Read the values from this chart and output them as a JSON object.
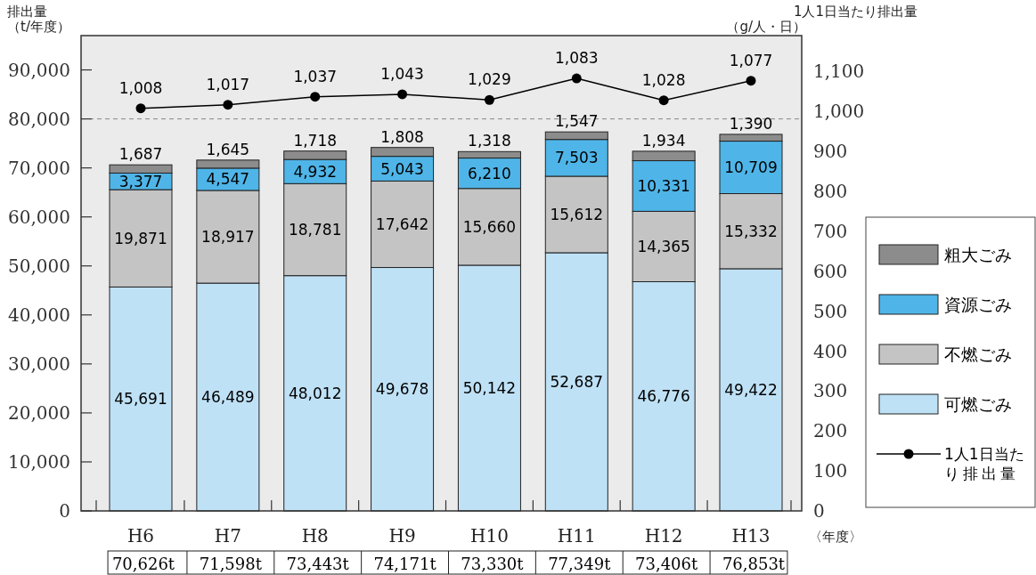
{
  "chart_data": {
    "type": "bar",
    "stacked": true,
    "ylabel": "排出量（t/年度）",
    "y2label": "1人1日当たり排出量（g/人・日）",
    "xlabel": "〈年度〉",
    "categories": [
      "H6",
      "H7",
      "H8",
      "H9",
      "H10",
      "H11",
      "H12",
      "H13"
    ],
    "series": [
      {
        "name": "可燃ごみ",
        "color": "#bfe1f6",
        "values": [
          45691,
          46489,
          48012,
          49678,
          50142,
          52687,
          46776,
          49422
        ],
        "value_labels": [
          "45,691",
          "46,489",
          "48,012",
          "49,678",
          "50,142",
          "52,687",
          "46,776",
          "49,422"
        ]
      },
      {
        "name": "不燃ごみ",
        "color": "#c4c4c4",
        "values": [
          19871,
          18917,
          18781,
          17642,
          15660,
          15612,
          14365,
          15332
        ],
        "value_labels": [
          "19,871",
          "18,917",
          "18,781",
          "17,642",
          "15,660",
          "15,612",
          "14,365",
          "15,332"
        ]
      },
      {
        "name": "資源ごみ",
        "color": "#4fb5e8",
        "values": [
          3377,
          4547,
          4932,
          5043,
          6210,
          7503,
          10331,
          10709
        ],
        "value_labels": [
          "3,377",
          "4,547",
          "4,932",
          "5,043",
          "6,210",
          "7,503",
          "10,331",
          "10,709"
        ]
      },
      {
        "name": "粗大ごみ",
        "color": "#8c8c8c",
        "values": [
          1687,
          1645,
          1718,
          1808,
          1318,
          1547,
          1934,
          1390
        ],
        "value_labels": [
          "1,687",
          "1,645",
          "1,718",
          "1,808",
          "1,318",
          "1,547",
          "1,934",
          "1,390"
        ]
      },
      {
        "name": "1人1日当たり排出量",
        "type": "line",
        "axis": "y2",
        "color": "#000000",
        "values": [
          1008,
          1017,
          1037,
          1043,
          1029,
          1083,
          1028,
          1077
        ],
        "value_labels": [
          "1,008",
          "1,017",
          "1,037",
          "1,043",
          "1,029",
          "1,083",
          "1,028",
          "1,077"
        ]
      }
    ],
    "ylim": [
      0,
      97000
    ],
    "yticks": [
      {
        "value": 0,
        "label": "0"
      },
      {
        "value": 10000,
        "label": "10,000"
      },
      {
        "value": 20000,
        "label": "20,000"
      },
      {
        "value": 30000,
        "label": "30,000"
      },
      {
        "value": 40000,
        "label": "40,000"
      },
      {
        "value": 50000,
        "label": "50,000"
      },
      {
        "value": 60000,
        "label": "60,000"
      },
      {
        "value": 70000,
        "label": "70,000"
      },
      {
        "value": 80000,
        "label": "80,000"
      },
      {
        "value": 90000,
        "label": "90,000"
      }
    ],
    "y2lim": [
      0,
      1190
    ],
    "y2ticks": [
      {
        "value": 0,
        "label": "0"
      },
      100,
      200,
      300,
      400,
      500,
      600,
      700,
      800,
      900,
      {
        "value": 1000,
        "label": "1,000"
      },
      {
        "value": 1100,
        "label": "1,100"
      }
    ],
    "ref_lines": [
      {
        "axis": "y",
        "value": 80000,
        "label": null,
        "color": "#888888",
        "line_style": "dashed"
      }
    ],
    "annotations": [
      "70,626t",
      "71,598t",
      "73,443t",
      "74,171t",
      "73,330t",
      "77,349t",
      "73,406t",
      "76,853t"
    ],
    "marker": "circle",
    "legend": "right",
    "grid": false
  }
}
